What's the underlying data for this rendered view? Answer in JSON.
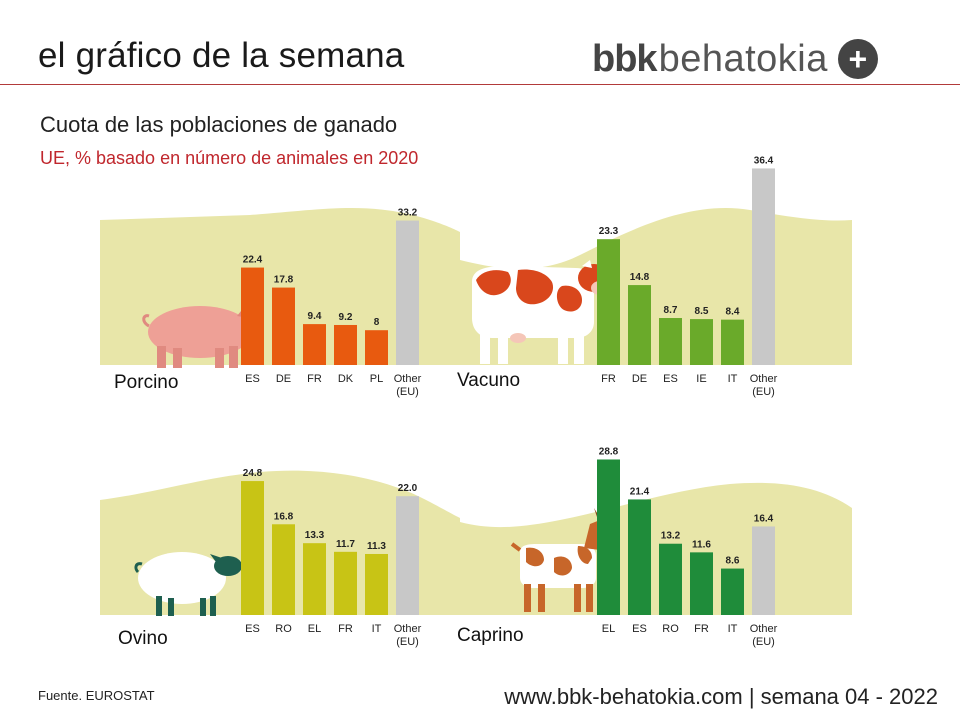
{
  "header": {
    "title": "el gráfico de la semana"
  },
  "logo": {
    "bold": "bbk",
    "light": "behatokia",
    "plus": "+"
  },
  "title": "Cuota de las poblaciones de ganado",
  "subtitle": "UE, % basado en número de animales en 2020",
  "source": "Fuente. EUROSTAT",
  "footer": "www.bbk-behatokia.com | semana 04 - 2022",
  "colors": {
    "pork": "#e85a0f",
    "cattle": "#6aaa2a",
    "sheep": "#c8c415",
    "goat": "#1f8c3a",
    "other": "#c8c8c8",
    "field": "#e8e6a9"
  },
  "chart_data": [
    {
      "type": "bar",
      "label": "Porcino",
      "categories": [
        "ES",
        "DE",
        "FR",
        "DK",
        "PL",
        "Other\n(EU)"
      ],
      "values": [
        22.4,
        17.8,
        9.4,
        9.2,
        8,
        33.2
      ],
      "value_labels": [
        "22.4",
        "17.8",
        "9.4",
        "9.2",
        "8",
        "33.2"
      ],
      "color": "#e85a0f",
      "icon": "pig-icon"
    },
    {
      "type": "bar",
      "label": "Vacuno",
      "categories": [
        "FR",
        "DE",
        "ES",
        "IE",
        "IT",
        "Other\n(EU)"
      ],
      "values": [
        23.3,
        14.8,
        8.7,
        8.5,
        8.4,
        36.4
      ],
      "value_labels": [
        "23.3",
        "14.8",
        "8.7",
        "8.5",
        "8.4",
        "36.4"
      ],
      "color": "#6aaa2a",
      "icon": "cow-icon"
    },
    {
      "type": "bar",
      "label": "Ovino",
      "categories": [
        "ES",
        "RO",
        "EL",
        "FR",
        "IT",
        "Other\n(EU)"
      ],
      "values": [
        24.8,
        16.8,
        13.3,
        11.7,
        11.3,
        22.0
      ],
      "value_labels": [
        "24.8",
        "16.8",
        "13.3",
        "11.7",
        "11.3",
        "22.0"
      ],
      "color": "#c8c415",
      "icon": "sheep-icon"
    },
    {
      "type": "bar",
      "label": "Caprino",
      "categories": [
        "EL",
        "ES",
        "RO",
        "FR",
        "IT",
        "Other\n(EU)"
      ],
      "values": [
        28.8,
        21.4,
        13.2,
        11.6,
        8.6,
        16.4
      ],
      "value_labels": [
        "28.8",
        "21.4",
        "13.2",
        "11.6",
        "8.6",
        "16.4"
      ],
      "color": "#1f8c3a",
      "icon": "goat-icon"
    }
  ]
}
